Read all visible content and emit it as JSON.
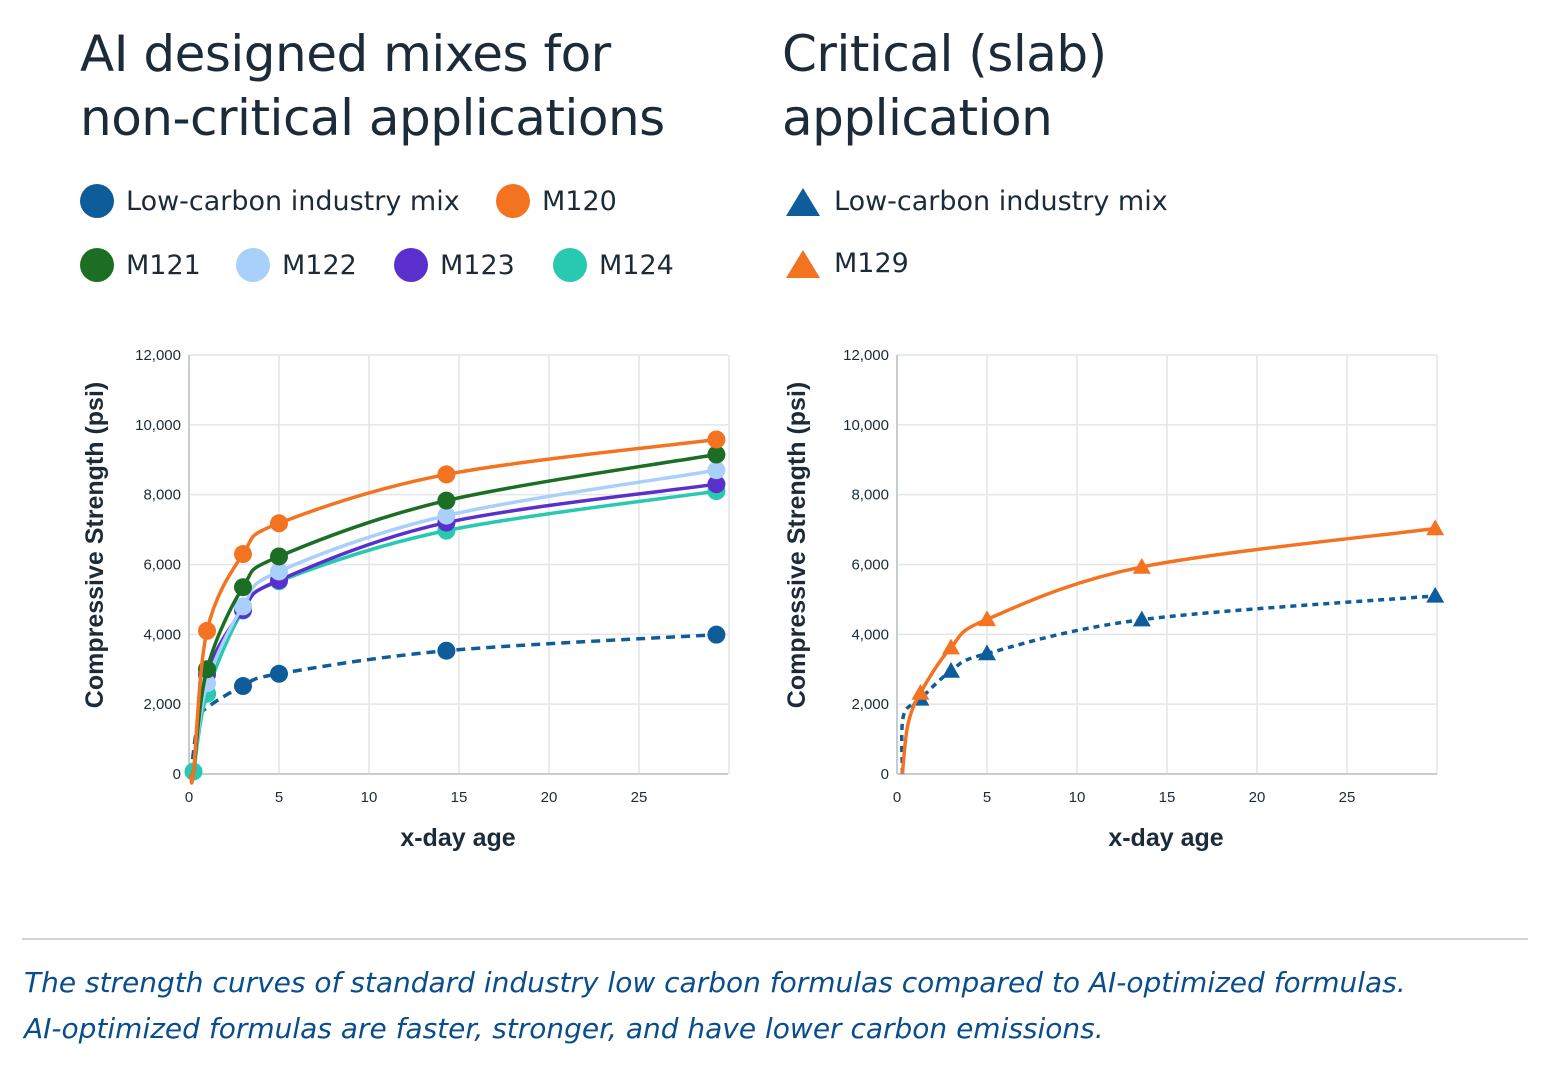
{
  "colors": {
    "low_carbon": "#0e5c99",
    "m120": "#f47321",
    "m121": "#1b6e23",
    "m122": "#a9cffb",
    "m123": "#5b2fcc",
    "m124": "#27c9b0",
    "m129": "#f47321",
    "grid": "#e2e5ea",
    "axis": "#c7ccd3",
    "title": "#1c2b39",
    "caption": "#0a4d8c"
  },
  "left": {
    "title_line1": "AI designed mixes for",
    "title_line2": "non-critical applications",
    "legend": {
      "low_carbon": "Low-carbon industry mix",
      "m120": "M120",
      "m121": "M121",
      "m122": "M122",
      "m123": "M123",
      "m124": "M124"
    }
  },
  "right": {
    "title_line1": "Critical (slab)",
    "title_line2": "application",
    "legend": {
      "low_carbon": "Low-carbon industry mix",
      "m129": "M129"
    }
  },
  "caption": {
    "line1": "The strength curves of standard industry low carbon formulas compared to AI-optimized formulas.",
    "line2": "AI-optimized formulas are faster, stronger, and have lower carbon emissions."
  },
  "chart_data": [
    {
      "type": "line",
      "title": "AI designed mixes for non-critical applications",
      "xlabel": "x-day age",
      "ylabel": "Compressive Strength (psi)",
      "xlim": [
        0,
        30
      ],
      "ylim": [
        0,
        12000
      ],
      "xticks": [
        0,
        5,
        10,
        15,
        20,
        25
      ],
      "yticks": [
        0,
        2000,
        4000,
        6000,
        8000,
        10000,
        12000
      ],
      "xtick_labels": [
        "0",
        "5",
        "10",
        "15",
        "20",
        "25"
      ],
      "ytick_labels": [
        "0",
        "2,000",
        "4,000",
        "6,000",
        "8,000",
        "10,000",
        "12,000"
      ],
      "marker": "circle",
      "grid": true,
      "series": [
        {
          "name": "Low-carbon industry mix",
          "key": "low_carbon",
          "dashed": true,
          "x": [
            0.25,
            1,
            3,
            5,
            14.3,
            29.3
          ],
          "y": [
            50,
            2300,
            2520,
            2870,
            3530,
            3990
          ]
        },
        {
          "name": "M124",
          "key": "m124",
          "dashed": false,
          "x": [
            0.25,
            1,
            3,
            5,
            14.3,
            29.3
          ],
          "y": [
            70,
            2300,
            4680,
            5520,
            6970,
            8100
          ]
        },
        {
          "name": "M123",
          "key": "m123",
          "dashed": false,
          "x": [
            0.25,
            1,
            3,
            5,
            14.3,
            29.3
          ],
          "y": [
            60,
            2850,
            4700,
            5550,
            7200,
            8300
          ]
        },
        {
          "name": "M122",
          "key": "m122",
          "dashed": false,
          "x": [
            0.25,
            1,
            3,
            5,
            14.3,
            29.3
          ],
          "y": [
            60,
            2600,
            4800,
            5800,
            7400,
            8700
          ]
        },
        {
          "name": "M121",
          "key": "m121",
          "dashed": false,
          "x": [
            0.25,
            1,
            3,
            5,
            14.3,
            29.3
          ],
          "y": [
            60,
            3000,
            5350,
            6230,
            7830,
            9150
          ]
        },
        {
          "name": "M120",
          "key": "m120",
          "dashed": false,
          "x": [
            0.25,
            1,
            3,
            5,
            14.3,
            29.3
          ],
          "y": [
            60,
            4100,
            6300,
            7180,
            8580,
            9580
          ]
        }
      ]
    },
    {
      "type": "line",
      "title": "Critical (slab) application",
      "xlabel": "x-day age",
      "ylabel": "Compressive Strength (psi)",
      "xlim": [
        0,
        30
      ],
      "ylim": [
        0,
        12000
      ],
      "xticks": [
        0,
        5,
        10,
        15,
        20,
        25
      ],
      "yticks": [
        0,
        2000,
        4000,
        6000,
        8000,
        10000,
        12000
      ],
      "xtick_labels": [
        "0",
        "5",
        "10",
        "15",
        "20",
        "25"
      ],
      "ytick_labels": [
        "0",
        "2,000",
        "4,000",
        "6,000",
        "8,000",
        "10,000",
        "12,000"
      ],
      "marker": "triangle",
      "grid": true,
      "series": [
        {
          "name": "Low-carbon industry mix",
          "key": "low_carbon",
          "dashed": true,
          "x": [
            1.3,
            3,
            5,
            13.6,
            29.9
          ],
          "y": [
            2150,
            2950,
            3450,
            4420,
            5100
          ]
        },
        {
          "name": "M129",
          "key": "m129",
          "dashed": false,
          "x": [
            1.3,
            3,
            5,
            13.6,
            29.9
          ],
          "y": [
            2320,
            3620,
            4430,
            5930,
            7030
          ]
        }
      ]
    }
  ]
}
